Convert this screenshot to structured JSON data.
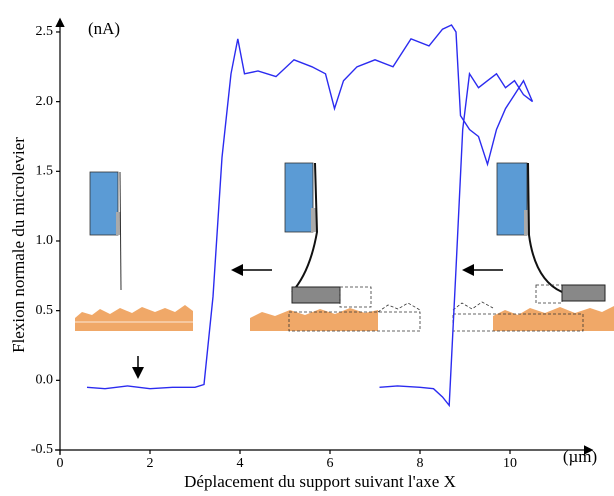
{
  "chart_data": {
    "type": "line",
    "y_label": "Flexion normale du microlevier",
    "x_label": "Déplacement du support suivant l'axe X",
    "y_unit": "(nA)",
    "x_unit": "(µm)",
    "xlim": [
      0,
      11.8
    ],
    "ylim": [
      -0.5,
      2.55
    ],
    "xticks": [
      0,
      2,
      4,
      6,
      8,
      10
    ],
    "yticks": [
      -0.5,
      {
        "value": 0,
        "label": "0.0"
      },
      0.5,
      {
        "value": 1,
        "label": "1.0"
      },
      1.5,
      {
        "value": 2,
        "label": "2.0"
      },
      2.5
    ],
    "series": [
      {
        "color": "#2b2bf0",
        "x": [
          0.6,
          1.0,
          1.5,
          2.0,
          2.5,
          3.0,
          3.2,
          3.4,
          3.6,
          3.8,
          3.95,
          4.1,
          4.4,
          4.8,
          5.2,
          5.6,
          5.9,
          6.1,
          6.3,
          6.6,
          7.0,
          7.4,
          7.8,
          8.2,
          8.5,
          8.7,
          8.8,
          8.9,
          9.1,
          9.3,
          9.5,
          9.7,
          9.9,
          10.1,
          10.3,
          10.5
        ],
        "values": [
          -0.05,
          -0.06,
          -0.04,
          -0.06,
          -0.05,
          -0.05,
          -0.03,
          0.6,
          1.6,
          2.2,
          2.45,
          2.2,
          2.22,
          2.18,
          2.3,
          2.25,
          2.2,
          1.95,
          2.15,
          2.25,
          2.3,
          2.25,
          2.45,
          2.4,
          2.52,
          2.55,
          2.5,
          1.9,
          1.8,
          1.75,
          1.55,
          1.8,
          1.95,
          2.05,
          2.15,
          2.0
        ]
      },
      {
        "color": "#2b2bf0",
        "x": [
          7.1,
          7.5,
          8.0,
          8.3,
          8.5,
          8.65,
          8.8,
          8.95,
          9.1,
          9.3,
          9.5,
          9.7,
          9.9,
          10.1,
          10.3,
          10.5
        ],
        "values": [
          -0.05,
          -0.04,
          -0.05,
          -0.06,
          -0.12,
          -0.18,
          0.8,
          1.8,
          2.2,
          2.1,
          2.15,
          2.2,
          2.1,
          2.15,
          2.05,
          2.0
        ]
      }
    ]
  }
}
